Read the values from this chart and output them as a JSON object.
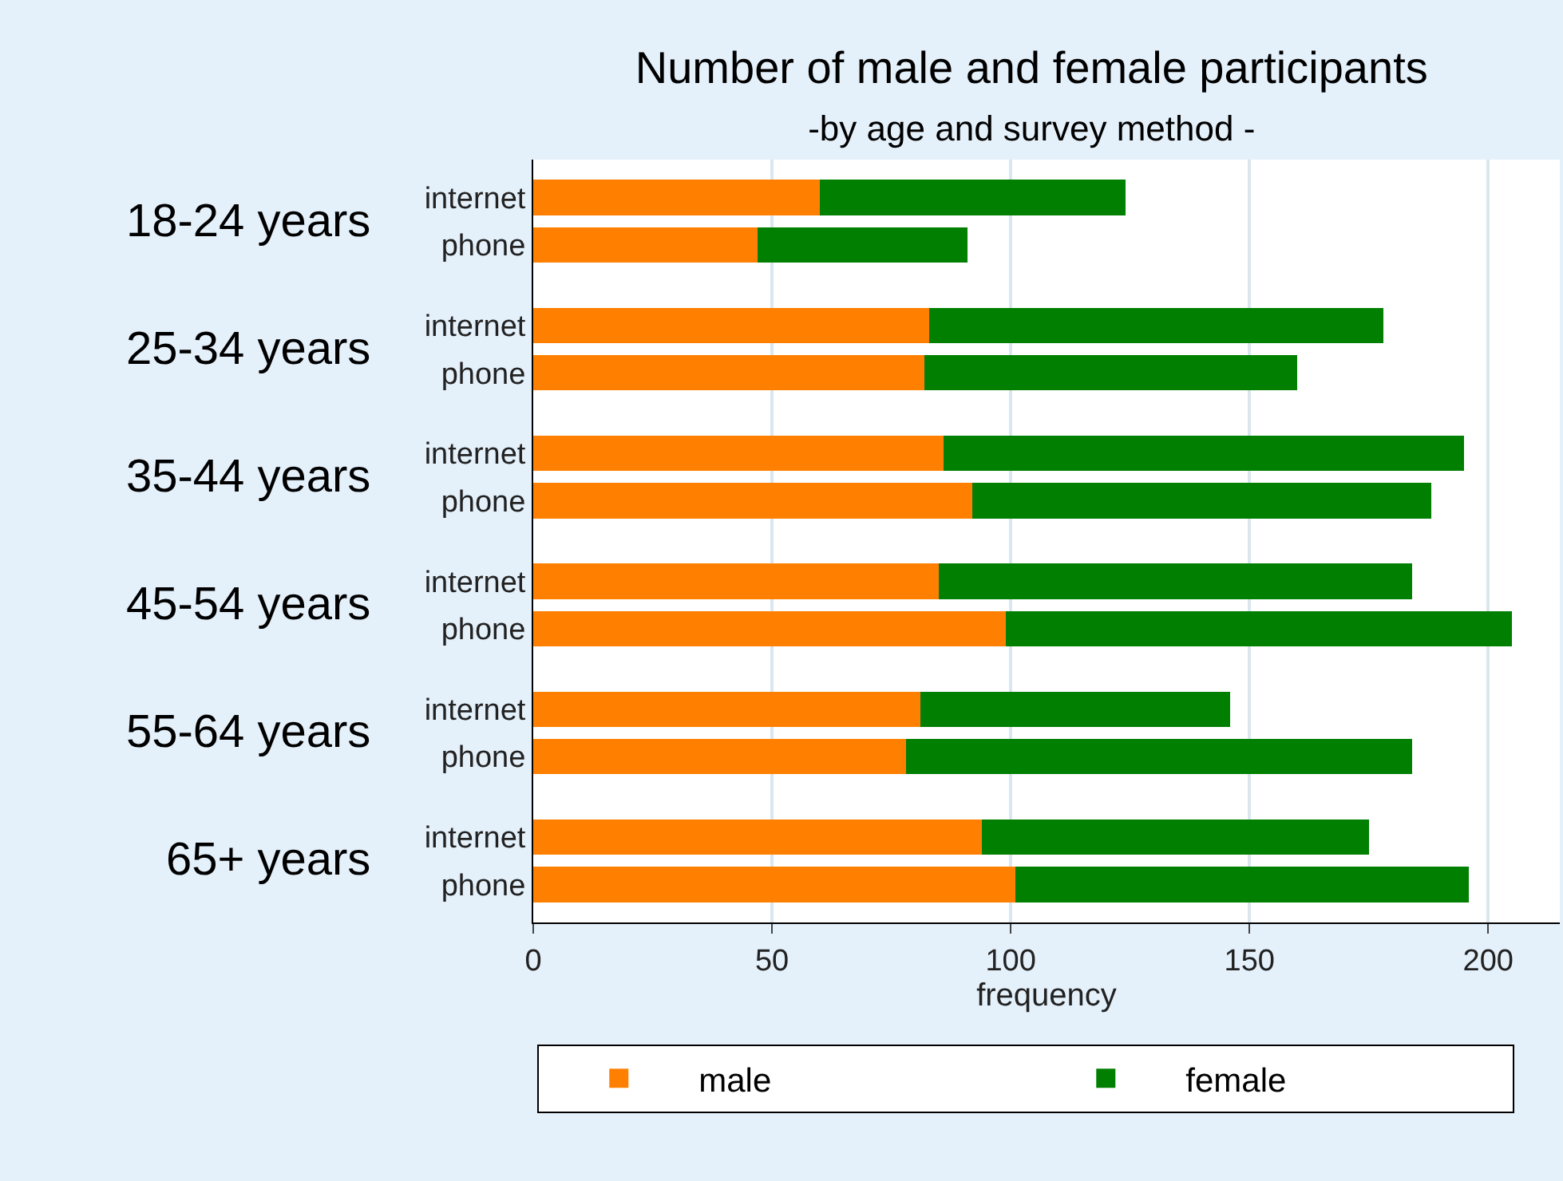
{
  "chart_data": {
    "type": "bar",
    "orientation": "horizontal",
    "stacked": true,
    "title": "Number of male and female participants",
    "subtitle": "-by age and survey method -",
    "xlabel": "frequency",
    "categories": [
      "internet",
      "phone",
      "internet",
      "phone",
      "internet",
      "phone",
      "internet",
      "phone",
      "internet",
      "phone",
      "internet",
      "phone"
    ],
    "annotations": [
      "18-24 years",
      "25-34 years",
      "35-44 years",
      "45-54 years",
      "55-64 years",
      "65+ years"
    ],
    "series": [
      {
        "name": "male",
        "color": "#ff8000",
        "values": [
          60,
          47,
          83,
          82,
          86,
          92,
          85,
          99,
          81,
          78,
          94,
          101
        ]
      },
      {
        "name": "female",
        "color": "#007f00",
        "values": [
          64,
          44,
          95,
          78,
          109,
          96,
          99,
          106,
          65,
          106,
          81,
          95
        ]
      }
    ],
    "xlim": [
      0,
      215
    ],
    "xticks": [
      0,
      50,
      100,
      150,
      200
    ],
    "grid": "x",
    "legend": "bottom"
  }
}
